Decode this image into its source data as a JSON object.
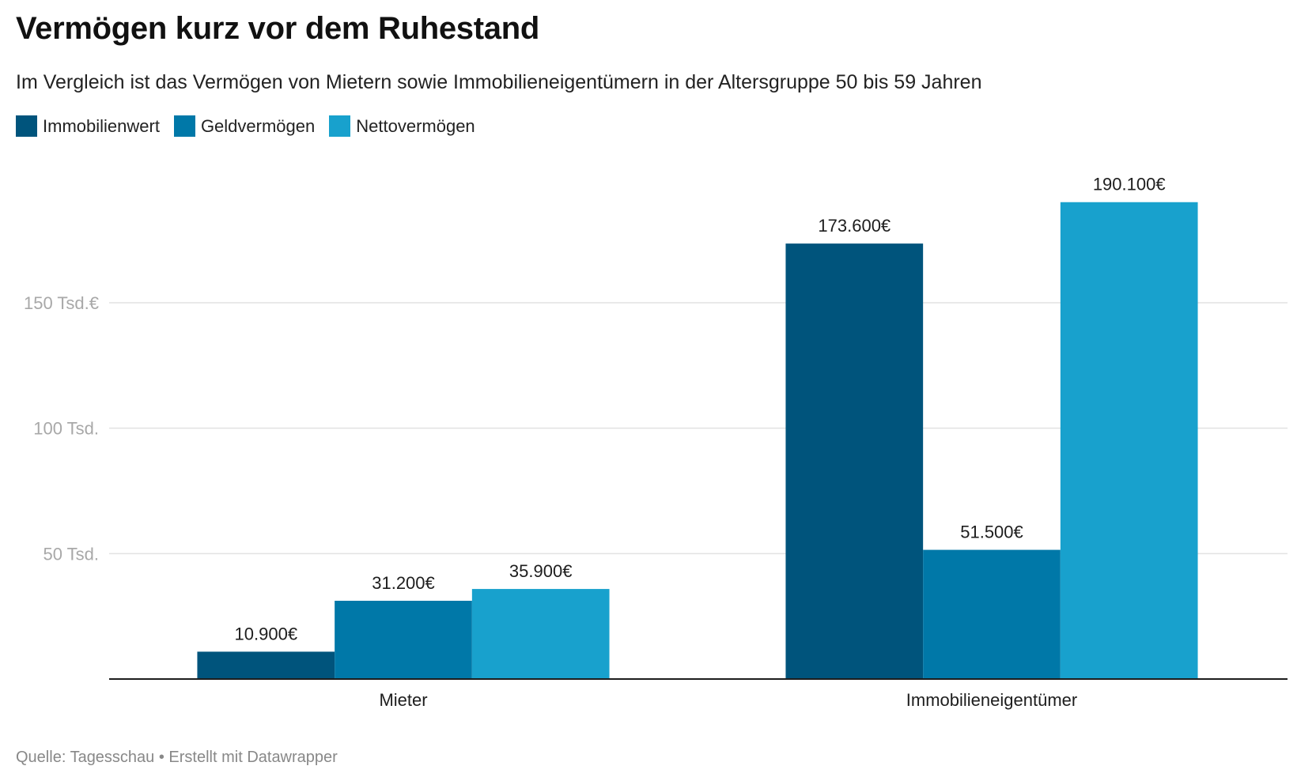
{
  "chart_data": {
    "type": "bar",
    "title": "Vermögen kurz vor dem Ruhestand",
    "subtitle": "Im Vergleich ist das Vermögen von Mietern sowie Immobilieneigentümern in der Altersgruppe 50 bis 59 Jahren",
    "categories": [
      "Mieter",
      "Immobilieneigentümer"
    ],
    "series": [
      {
        "name": "Immobilienwert",
        "color": "#00547c",
        "values": [
          10900,
          173600
        ],
        "labels": [
          "10.900€",
          "173.600€"
        ]
      },
      {
        "name": "Geldvermögen",
        "color": "#0078a8",
        "values": [
          31200,
          51500
        ],
        "labels": [
          "31.200€",
          "51.500€"
        ]
      },
      {
        "name": "Nettovermögen",
        "color": "#18a1cd",
        "values": [
          35900,
          190100
        ],
        "labels": [
          "35.900€",
          "190.100€"
        ]
      }
    ],
    "yticks": [
      {
        "value": 50000,
        "label": "50 Tsd."
      },
      {
        "value": 100000,
        "label": "100 Tsd."
      },
      {
        "value": 150000,
        "label": "150 Tsd.€"
      }
    ],
    "ylim": [
      0,
      190100
    ],
    "grid": true,
    "legend_position": "top-left"
  },
  "footer": "Quelle: Tagesschau • Erstellt mit Datawrapper"
}
